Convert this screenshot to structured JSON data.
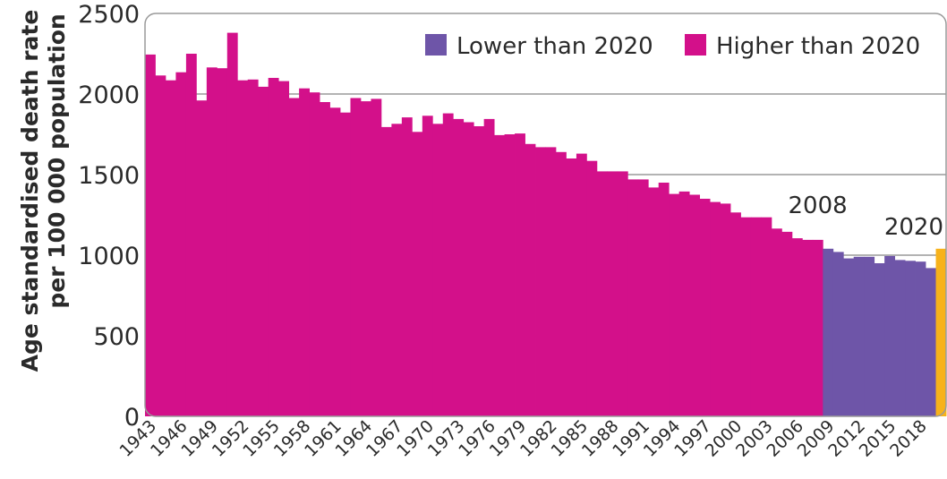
{
  "chart_data": {
    "type": "bar",
    "ylabel_line1": "Age standardised death rate",
    "ylabel_line2": "per 100 000 population",
    "ylim": [
      0,
      2500
    ],
    "yticks": [
      0,
      500,
      1000,
      1500,
      2000,
      2500
    ],
    "grid": true,
    "x_start": 1943,
    "x_end": 2020,
    "x_tick_labels": [
      "1943",
      "1946",
      "1949",
      "1952",
      "1955",
      "1958",
      "1961",
      "1964",
      "1967",
      "1970",
      "1973",
      "1976",
      "1979",
      "1982",
      "1985",
      "1988",
      "1991",
      "1994",
      "1997",
      "2000",
      "2003",
      "2006",
      "2009",
      "2012",
      "2015",
      "2018"
    ],
    "x": [
      1943,
      1944,
      1945,
      1946,
      1947,
      1948,
      1949,
      1950,
      1951,
      1952,
      1953,
      1954,
      1955,
      1956,
      1957,
      1958,
      1959,
      1960,
      1961,
      1962,
      1963,
      1964,
      1965,
      1966,
      1967,
      1968,
      1969,
      1970,
      1971,
      1972,
      1973,
      1974,
      1975,
      1976,
      1977,
      1978,
      1979,
      1980,
      1981,
      1982,
      1983,
      1984,
      1985,
      1986,
      1987,
      1988,
      1989,
      1990,
      1991,
      1992,
      1993,
      1994,
      1995,
      1996,
      1997,
      1998,
      1999,
      2000,
      2001,
      2002,
      2003,
      2004,
      2005,
      2006,
      2007,
      2008,
      2009,
      2010,
      2011,
      2012,
      2013,
      2014,
      2015,
      2016,
      2017,
      2018,
      2019,
      2020
    ],
    "values": [
      2245,
      2115,
      2085,
      2135,
      2250,
      1960,
      2165,
      2160,
      2380,
      2085,
      2090,
      2045,
      2100,
      2080,
      1975,
      2035,
      2010,
      1950,
      1915,
      1885,
      1975,
      1955,
      1970,
      1795,
      1815,
      1855,
      1765,
      1865,
      1815,
      1880,
      1845,
      1825,
      1800,
      1845,
      1745,
      1750,
      1755,
      1690,
      1670,
      1670,
      1640,
      1600,
      1630,
      1585,
      1520,
      1520,
      1520,
      1470,
      1470,
      1420,
      1450,
      1380,
      1395,
      1375,
      1350,
      1330,
      1320,
      1265,
      1235,
      1235,
      1235,
      1165,
      1145,
      1105,
      1095,
      1095,
      1040,
      1020,
      980,
      990,
      990,
      950,
      995,
      970,
      965,
      960,
      920,
      1040
    ],
    "categories_by_bar": [
      "higher",
      "higher",
      "higher",
      "higher",
      "higher",
      "higher",
      "higher",
      "higher",
      "higher",
      "higher",
      "higher",
      "higher",
      "higher",
      "higher",
      "higher",
      "higher",
      "higher",
      "higher",
      "higher",
      "higher",
      "higher",
      "higher",
      "higher",
      "higher",
      "higher",
      "higher",
      "higher",
      "higher",
      "higher",
      "higher",
      "higher",
      "higher",
      "higher",
      "higher",
      "higher",
      "higher",
      "higher",
      "higher",
      "higher",
      "higher",
      "higher",
      "higher",
      "higher",
      "higher",
      "higher",
      "higher",
      "higher",
      "higher",
      "higher",
      "higher",
      "higher",
      "higher",
      "higher",
      "higher",
      "higher",
      "higher",
      "higher",
      "higher",
      "higher",
      "higher",
      "higher",
      "higher",
      "higher",
      "higher",
      "higher",
      "higher",
      "lower",
      "lower",
      "lower",
      "lower",
      "lower",
      "lower",
      "lower",
      "lower",
      "lower",
      "lower",
      "lower",
      "ref"
    ],
    "legend": [
      {
        "key": "lower",
        "label": "Lower than 2020",
        "color": "#6e55a8"
      },
      {
        "key": "higher",
        "label": "Higher than 2020",
        "color": "#d3108a"
      }
    ],
    "reference_color": "#f7b21a",
    "legend_position": "top-right",
    "annotations": [
      {
        "text": "2008",
        "year": 2008
      },
      {
        "text": "2020",
        "year": 2020
      }
    ]
  }
}
